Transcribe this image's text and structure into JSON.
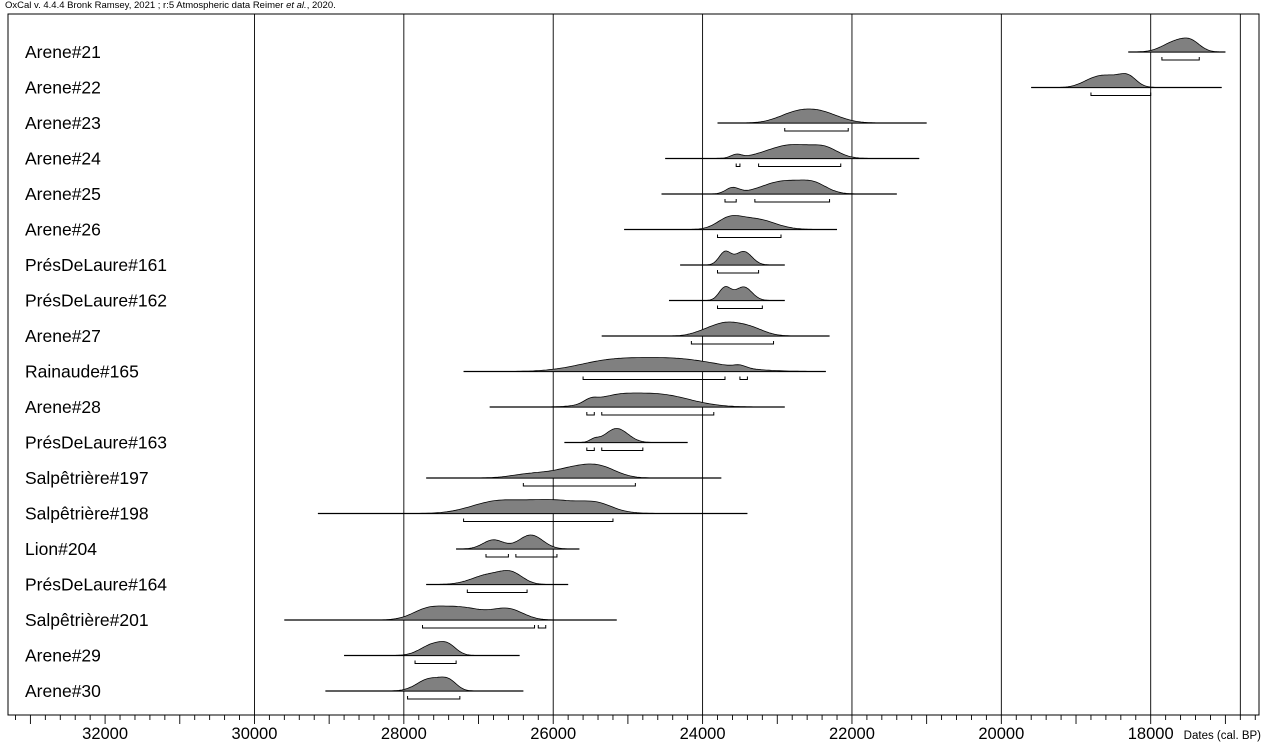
{
  "header": {
    "text_pre": "OxCal v. 4.4.4 Bronk Ramsey, 2021 ; r:5 Atmospheric data Reimer ",
    "text_italic": "et al.",
    "text_post": ", 2020."
  },
  "chart_data": {
    "type": "multiple_plot_calibrated_dates",
    "xlabel": "Dates (cal. BP)",
    "xlim": [
      33300,
      16550
    ],
    "x_reversed": true,
    "grid": "vertical",
    "x_ticks": [
      32000,
      30000,
      28000,
      26000,
      24000,
      22000,
      20000,
      18000
    ],
    "x_tick_labels": [
      "32000",
      "30000",
      "28000",
      "26000",
      "24000",
      "22000",
      "20000",
      "18000"
    ],
    "vertical_lines": [
      30000,
      28000,
      26000,
      24000,
      22000,
      20000,
      18000,
      16800
    ],
    "fill_color": "#808080",
    "series": [
      {
        "name": "Arene#21",
        "range": [
          18300,
          17000
        ],
        "peaks": [
          [
            17650,
            0.95,
            180
          ],
          [
            17450,
            0.6,
            120
          ]
        ],
        "hpd": [
          [
            17850,
            17350
          ]
        ]
      },
      {
        "name": "Arene#22",
        "range": [
          19600,
          17050
        ],
        "peaks": [
          [
            18550,
            1.0,
            200
          ],
          [
            18300,
            0.75,
            110
          ],
          [
            18800,
            0.4,
            150
          ]
        ],
        "hpd": [
          [
            18800,
            18000
          ]
        ]
      },
      {
        "name": "Arene#23",
        "range": [
          23800,
          21000
        ],
        "peaks": [
          [
            22450,
            1.0,
            260
          ],
          [
            22800,
            0.6,
            220
          ]
        ],
        "hpd": [
          [
            22900,
            22050
          ]
        ]
      },
      {
        "name": "Arene#24",
        "range": [
          24500,
          21100
        ],
        "peaks": [
          [
            22800,
            1.0,
            330
          ],
          [
            23550,
            0.25,
            70
          ],
          [
            22350,
            0.5,
            170
          ]
        ],
        "hpd": [
          [
            23550,
            23500
          ],
          [
            23250,
            22150
          ]
        ]
      },
      {
        "name": "Arene#25",
        "range": [
          24550,
          21400
        ],
        "peaks": [
          [
            22900,
            1.0,
            300
          ],
          [
            23600,
            0.45,
            90
          ],
          [
            22500,
            0.55,
            170
          ]
        ],
        "hpd": [
          [
            23700,
            23550
          ],
          [
            23300,
            22300
          ]
        ]
      },
      {
        "name": "Arene#26",
        "range": [
          25050,
          22200
        ],
        "peaks": [
          [
            23300,
            1.0,
            260
          ],
          [
            23650,
            0.85,
            160
          ]
        ],
        "hpd": [
          [
            23800,
            22950
          ]
        ]
      },
      {
        "name": "PrésDeLaure#161",
        "range": [
          24300,
          22900
        ],
        "peaks": [
          [
            23700,
            0.95,
            80
          ],
          [
            23450,
            1.0,
            110
          ]
        ],
        "hpd": [
          [
            23800,
            23250
          ]
        ]
      },
      {
        "name": "PrésDeLaure#162",
        "range": [
          24450,
          22900
        ],
        "peaks": [
          [
            23700,
            0.95,
            80
          ],
          [
            23450,
            1.0,
            110
          ]
        ],
        "hpd": [
          [
            23800,
            23200
          ]
        ]
      },
      {
        "name": "Arene#27",
        "range": [
          25350,
          22300
        ],
        "peaks": [
          [
            23700,
            1.0,
            170
          ],
          [
            23400,
            1.0,
            200
          ],
          [
            23950,
            0.5,
            170
          ]
        ],
        "hpd": [
          [
            24150,
            23050
          ]
        ]
      },
      {
        "name": "Rainaude#165",
        "range": [
          27200,
          22350
        ],
        "peaks": [
          [
            24400,
            1.0,
            600
          ],
          [
            25300,
            0.6,
            420
          ],
          [
            23500,
            0.2,
            80
          ]
        ],
        "hpd": [
          [
            25600,
            23700
          ],
          [
            23500,
            23400
          ]
        ]
      },
      {
        "name": "Arene#28",
        "range": [
          26850,
          22900
        ],
        "peaks": [
          [
            24600,
            1.0,
            420
          ],
          [
            25200,
            0.6,
            280
          ],
          [
            25500,
            0.3,
            90
          ]
        ],
        "hpd": [
          [
            25550,
            25450
          ],
          [
            25350,
            23850
          ]
        ]
      },
      {
        "name": "PrésDeLaure#163",
        "range": [
          25850,
          24200
        ],
        "peaks": [
          [
            25150,
            1.0,
            150
          ],
          [
            25450,
            0.2,
            60
          ]
        ],
        "hpd": [
          [
            25550,
            25450
          ],
          [
            25350,
            24800
          ]
        ]
      },
      {
        "name": "Salpêtrière#197",
        "range": [
          27700,
          23750
        ],
        "peaks": [
          [
            25700,
            1.0,
            280
          ],
          [
            25350,
            0.8,
            220
          ],
          [
            26300,
            0.4,
            250
          ]
        ],
        "hpd": [
          [
            26400,
            24900
          ]
        ]
      },
      {
        "name": "Salpêtrière#198",
        "range": [
          29150,
          23400
        ],
        "peaks": [
          [
            26000,
            1.0,
            450
          ],
          [
            26800,
            0.75,
            330
          ],
          [
            25400,
            0.45,
            200
          ]
        ],
        "hpd": [
          [
            27200,
            25200
          ]
        ]
      },
      {
        "name": "Lion#204",
        "range": [
          27300,
          25650
        ],
        "peaks": [
          [
            26300,
            1.0,
            160
          ],
          [
            26800,
            0.65,
            140
          ]
        ],
        "hpd": [
          [
            26900,
            26600
          ],
          [
            26500,
            25950
          ]
        ]
      },
      {
        "name": "PrésDeLaure#164",
        "range": [
          27700,
          25800
        ],
        "peaks": [
          [
            26850,
            1.0,
            230
          ],
          [
            26550,
            0.9,
            150
          ]
        ],
        "hpd": [
          [
            27150,
            26350
          ]
        ]
      },
      {
        "name": "Salpêtrière#201",
        "range": [
          29600,
          25150
        ],
        "peaks": [
          [
            27250,
            1.0,
            320
          ],
          [
            26600,
            0.8,
            200
          ],
          [
            27700,
            0.6,
            200
          ]
        ],
        "hpd": [
          [
            27750,
            26250
          ],
          [
            26200,
            26100
          ]
        ]
      },
      {
        "name": "Arene#29",
        "range": [
          28800,
          26450
        ],
        "peaks": [
          [
            27600,
            1.0,
            170
          ],
          [
            27400,
            0.6,
            110
          ]
        ],
        "hpd": [
          [
            27850,
            27300
          ]
        ]
      },
      {
        "name": "Arene#30",
        "range": [
          29050,
          26400
        ],
        "peaks": [
          [
            27650,
            1.0,
            170
          ],
          [
            27400,
            0.7,
            110
          ]
        ],
        "hpd": [
          [
            27950,
            27250
          ]
        ]
      }
    ]
  }
}
